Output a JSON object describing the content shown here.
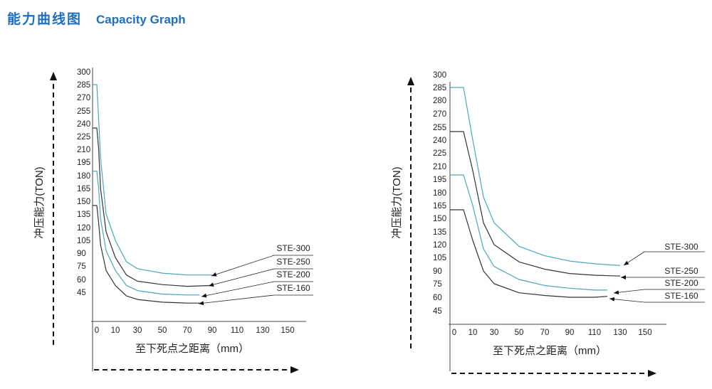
{
  "header": {
    "title_cn": "能力曲线图",
    "title_en": "Capacity Graph",
    "color": "#1f6fc0"
  },
  "chart_data": [
    {
      "type": "line",
      "xlabel": "至下死点之距离（mm）",
      "ylabel": "冲压能力(TON)",
      "x_ticks": [
        "0",
        "10",
        "30",
        "50",
        "70",
        "90",
        "110",
        "130",
        "150"
      ],
      "y_ticks": [
        "300",
        "285",
        "270",
        "255",
        "240",
        "225",
        "210",
        "195",
        "180",
        "165",
        "150",
        "135",
        "120",
        "105",
        "90",
        "75",
        "60",
        "45"
      ],
      "series": [
        {
          "name": "STE-300",
          "color": "#4aa6b8",
          "x": [
            0,
            1,
            2,
            5,
            10,
            20,
            30,
            50,
            70,
            90
          ],
          "y": [
            285,
            260,
            215,
            150,
            120,
            95,
            87,
            82,
            80,
            80
          ]
        },
        {
          "name": "STE-250",
          "color": "#333333",
          "x": [
            0,
            1,
            2,
            5,
            10,
            20,
            30,
            50,
            70,
            90
          ],
          "y": [
            250,
            225,
            180,
            130,
            100,
            80,
            73,
            69,
            67,
            68
          ]
        },
        {
          "name": "STE-200",
          "color": "#4aa6b8",
          "x": [
            0,
            1,
            2,
            5,
            10,
            20,
            30,
            50,
            70,
            80
          ],
          "y": [
            200,
            180,
            145,
            108,
            85,
            68,
            62,
            58,
            57,
            57
          ]
        },
        {
          "name": "STE-160",
          "color": "#333333",
          "x": [
            0,
            1,
            2,
            5,
            10,
            20,
            30,
            50,
            70,
            80
          ],
          "y": [
            160,
            140,
            115,
            85,
            68,
            56,
            52,
            49,
            48,
            48
          ]
        }
      ]
    },
    {
      "type": "line",
      "xlabel": "至下死点之距离（mm）",
      "ylabel": "冲压能力(TON)",
      "x_ticks": [
        "0",
        "10",
        "30",
        "50",
        "70",
        "90",
        "110",
        "130",
        "150"
      ],
      "y_ticks": [
        "300",
        "285",
        "280",
        "270",
        "255",
        "240",
        "225",
        "210",
        "195",
        "180",
        "165",
        "150",
        "135",
        "120",
        "105",
        "90",
        "75",
        "60",
        "45"
      ],
      "series": [
        {
          "name": "STE-300",
          "color": "#4aa6b8",
          "x": [
            0,
            5,
            10,
            20,
            30,
            50,
            70,
            90,
            110,
            130
          ],
          "y": [
            285,
            285,
            240,
            175,
            145,
            118,
            107,
            101,
            98,
            96
          ]
        },
        {
          "name": "STE-250",
          "color": "#333333",
          "x": [
            0,
            5,
            10,
            20,
            30,
            50,
            70,
            90,
            110,
            130
          ],
          "y": [
            250,
            250,
            205,
            145,
            120,
            100,
            92,
            87,
            85,
            84
          ]
        },
        {
          "name": "STE-200",
          "color": "#4aa6b8",
          "x": [
            0,
            5,
            10,
            20,
            30,
            50,
            70,
            90,
            110,
            120
          ],
          "y": [
            200,
            200,
            165,
            115,
            95,
            80,
            73,
            70,
            68,
            68
          ]
        },
        {
          "name": "STE-160",
          "color": "#333333",
          "x": [
            0,
            5,
            10,
            20,
            30,
            50,
            70,
            90,
            110,
            120
          ],
          "y": [
            160,
            160,
            125,
            90,
            75,
            65,
            62,
            60,
            60,
            61
          ]
        }
      ]
    }
  ]
}
